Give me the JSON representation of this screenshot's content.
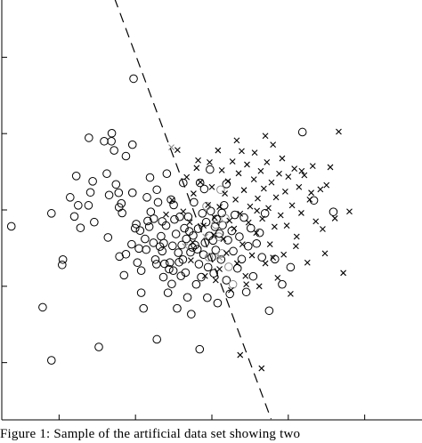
{
  "caption": "Figure 1: Sample of the artificial data set showing two",
  "chart_data": {
    "type": "scatter",
    "title": "",
    "xlabel": "",
    "ylabel": "",
    "xlim": [
      -4.5,
      6.5
    ],
    "ylim": [
      -4.5,
      6.5
    ],
    "grid": false,
    "ticks": {
      "x": [
        -3,
        -1,
        1,
        3,
        5
      ],
      "y": [
        -3,
        -1,
        1,
        3,
        5
      ]
    },
    "tick_labels_visible": false,
    "series": [
      {
        "marker": "circle",
        "color": "#000000",
        "points": [
          [
            -4.25,
            0.57
          ],
          [
            -3.43,
            -1.55
          ],
          [
            -3.2,
            -2.94
          ],
          [
            -3.2,
            0.91
          ],
          [
            -2.9,
            -0.3
          ],
          [
            -2.92,
            -0.44
          ],
          [
            -2.71,
            1.33
          ],
          [
            -2.6,
            0.83
          ],
          [
            -2.55,
            1.89
          ],
          [
            -2.5,
            1.12
          ],
          [
            -2.44,
            0.53
          ],
          [
            -2.23,
            1.12
          ],
          [
            -2.22,
            2.89
          ],
          [
            -2.18,
            1.46
          ],
          [
            -2.12,
            1.75
          ],
          [
            -2.08,
            0.68
          ],
          [
            -1.96,
            -2.59
          ],
          [
            -1.75,
            1.95
          ],
          [
            -1.82,
            2.8
          ],
          [
            -1.63,
            2.8
          ],
          [
            -1.69,
            1.39
          ],
          [
            -1.72,
            0.28
          ],
          [
            -1.62,
            3.01
          ],
          [
            -1.56,
            2.56
          ],
          [
            -1.51,
            1.67
          ],
          [
            -1.44,
            1.45
          ],
          [
            -1.42,
            -0.22
          ],
          [
            -1.43,
            1.07
          ],
          [
            -1.37,
            1.17
          ],
          [
            -1.35,
            0.92
          ],
          [
            -1.3,
            -0.71
          ],
          [
            -1.25,
            -0.16
          ],
          [
            -1.25,
            2.41
          ],
          [
            -1.08,
            1.45
          ],
          [
            -1.08,
            2.71
          ],
          [
            -1.05,
            4.44
          ],
          [
            -1.01,
            0.52
          ],
          [
            -0.98,
            0.63
          ],
          [
            -0.95,
            -0.38
          ],
          [
            -0.91,
            -0.01
          ],
          [
            -0.88,
            0.46
          ],
          [
            -0.85,
            -0.59
          ],
          [
            -0.85,
            -1.17
          ],
          [
            -0.79,
            -1.58
          ],
          [
            -0.75,
            0.24
          ],
          [
            -0.72,
            -0.04
          ],
          [
            -0.68,
            0.71
          ],
          [
            -0.64,
            0.56
          ],
          [
            -0.62,
            1.85
          ],
          [
            -0.6,
            0.95
          ],
          [
            -0.53,
            0.14
          ],
          [
            -0.52,
            0.77
          ],
          [
            -0.48,
            -0.3
          ],
          [
            -0.45,
            -0.42
          ],
          [
            -0.44,
            1.53
          ],
          [
            -0.44,
            -2.39
          ],
          [
            -0.41,
            1.2
          ],
          [
            -0.36,
            0.04
          ],
          [
            -0.33,
            0.31
          ],
          [
            -0.3,
            -0.08
          ],
          [
            -0.27,
            -0.76
          ],
          [
            -0.26,
            0.13
          ],
          [
            -0.24,
            -0.41
          ],
          [
            -0.2,
            0.59
          ],
          [
            -0.18,
            1.95
          ],
          [
            -0.15,
            -1.17
          ],
          [
            -0.12,
            -0.55
          ],
          [
            -0.1,
            -0.38
          ],
          [
            -0.07,
            1.27
          ],
          [
            -0.05,
            -0.94
          ],
          [
            -0.03,
            0.06
          ],
          [
            -0.01,
            -0.59
          ],
          [
            0.02,
            0.75
          ],
          [
            0.06,
            0.37
          ],
          [
            0.09,
            -1.58
          ],
          [
            0.12,
            -0.12
          ],
          [
            0.14,
            -0.37
          ],
          [
            0.16,
            0.82
          ],
          [
            0.19,
            -0.73
          ],
          [
            0.21,
            0.08
          ],
          [
            0.24,
            -0.3
          ],
          [
            0.25,
            1.71
          ],
          [
            0.28,
            0.52
          ],
          [
            0.31,
            -0.64
          ],
          [
            0.33,
            0.24
          ],
          [
            0.36,
            -1.29
          ],
          [
            0.38,
            0.82
          ],
          [
            0.41,
            0.44
          ],
          [
            0.44,
            -0.11
          ],
          [
            0.46,
            -1.73
          ],
          [
            0.49,
            0.02
          ],
          [
            0.51,
            0.33
          ],
          [
            0.53,
            1.2
          ],
          [
            0.56,
            0.08
          ],
          [
            0.59,
            -0.95
          ],
          [
            0.62,
            -0.03
          ],
          [
            0.64,
            0.51
          ],
          [
            0.66,
            -0.42
          ],
          [
            0.68,
            -2.65
          ],
          [
            0.69,
            1.71
          ],
          [
            0.72,
            -0.76
          ],
          [
            0.75,
            0.91
          ],
          [
            0.78,
            -0.17
          ],
          [
            0.8,
            1.55
          ],
          [
            0.82,
            0.14
          ],
          [
            0.85,
            0.68
          ],
          [
            0.88,
            -1.3
          ],
          [
            0.9,
            -0.5
          ],
          [
            0.93,
            0.32
          ],
          [
            0.95,
            2.06
          ],
          [
            0.97,
            0.97
          ],
          [
            1.0,
            -0.24
          ],
          [
            1.03,
            0.2
          ],
          [
            1.05,
            -0.66
          ],
          [
            1.08,
            0.56
          ],
          [
            1.1,
            -0.05
          ],
          [
            1.12,
            0.76
          ],
          [
            1.15,
            -1.44
          ],
          [
            1.2,
            0.38
          ],
          [
            1.24,
            -0.3
          ],
          [
            1.28,
            0.6
          ],
          [
            1.32,
            1.12
          ],
          [
            1.38,
            -0.84
          ],
          [
            1.42,
            0.21
          ],
          [
            1.47,
            -1.2
          ],
          [
            1.52,
            0.45
          ],
          [
            1.56,
            -0.08
          ],
          [
            1.6,
            0.87
          ],
          [
            1.67,
            -0.53
          ],
          [
            1.72,
            0.3
          ],
          [
            1.78,
            -0.29
          ],
          [
            1.84,
            0.8
          ],
          [
            1.9,
            -1.15
          ],
          [
            1.95,
            0.05
          ],
          [
            2.02,
            0.52
          ],
          [
            2.08,
            -0.74
          ],
          [
            2.17,
            0.12
          ],
          [
            2.25,
            0.4
          ],
          [
            2.31,
            -0.24
          ],
          [
            2.39,
            0.91
          ],
          [
            2.5,
            -1.64
          ],
          [
            2.65,
            -0.29
          ],
          [
            2.84,
            -0.95
          ],
          [
            3.06,
            -0.5
          ],
          [
            3.37,
            3.04
          ],
          [
            3.67,
            1.25
          ],
          [
            4.18,
            0.95
          ],
          [
            -1.1,
            0.1
          ],
          [
            -0.7,
            1.33
          ],
          [
            0.0,
            1.13
          ],
          [
            -0.3,
            0.7
          ],
          [
            1.38,
            1.68
          ],
          [
            1.26,
            0.92
          ]
        ]
      },
      {
        "marker": "circle",
        "color": "#8a8a8a",
        "points": [
          [
            0.86,
            1.1
          ],
          [
            1.1,
            0.62
          ],
          [
            1.18,
            0.3
          ],
          [
            1.26,
            -0.14
          ],
          [
            1.35,
            0.78
          ],
          [
            1.44,
            -0.49
          ],
          [
            1.55,
            -0.95
          ],
          [
            0.92,
            -0.24
          ],
          [
            1.23,
            1.53
          ]
        ]
      },
      {
        "marker": "cross",
        "color": "#000000",
        "points": [
          [
            -0.2,
            0.88
          ],
          [
            -0.04,
            1.26
          ],
          [
            0.1,
            2.57
          ],
          [
            0.25,
            0.96
          ],
          [
            0.34,
            1.86
          ],
          [
            0.42,
            0.68
          ],
          [
            0.45,
            -0.32
          ],
          [
            0.52,
            1.43
          ],
          [
            0.6,
            2.1
          ],
          [
            0.7,
            1.73
          ],
          [
            0.78,
            0.59
          ],
          [
            0.82,
            -0.73
          ],
          [
            0.9,
            1.13
          ],
          [
            0.94,
            2.25
          ],
          [
            1.0,
            1.6
          ],
          [
            1.05,
            0.35
          ],
          [
            1.1,
            -0.84
          ],
          [
            1.16,
            2.56
          ],
          [
            1.2,
            1.08
          ],
          [
            1.26,
            2.04
          ],
          [
            1.3,
            0.24
          ],
          [
            1.34,
            1.43
          ],
          [
            1.38,
            -0.13
          ],
          [
            1.42,
            1.75
          ],
          [
            1.46,
            0.72
          ],
          [
            1.5,
            -1.1
          ],
          [
            1.54,
            2.27
          ],
          [
            1.58,
            0.51
          ],
          [
            1.62,
            1.27
          ],
          [
            1.66,
            -0.4
          ],
          [
            1.7,
            1.96
          ],
          [
            1.74,
            0.9
          ],
          [
            1.78,
            2.54
          ],
          [
            1.8,
            0.1
          ],
          [
            1.84,
            1.52
          ],
          [
            1.88,
            -0.73
          ],
          [
            1.92,
            2.19
          ],
          [
            1.96,
            0.67
          ],
          [
            2.0,
            1.09
          ],
          [
            2.05,
            -0.19
          ],
          [
            2.1,
            1.8
          ],
          [
            2.12,
            2.5
          ],
          [
            2.16,
            0.4
          ],
          [
            2.2,
            1.3
          ],
          [
            2.24,
            -1.0
          ],
          [
            2.28,
            2.02
          ],
          [
            2.32,
            0.77
          ],
          [
            2.36,
            1.56
          ],
          [
            2.4,
            -0.4
          ],
          [
            2.44,
            2.25
          ],
          [
            2.48,
            1.05
          ],
          [
            2.52,
            0.1
          ],
          [
            2.56,
            1.72
          ],
          [
            2.6,
            2.71
          ],
          [
            2.64,
            0.56
          ],
          [
            2.68,
            1.33
          ],
          [
            2.72,
            -0.78
          ],
          [
            2.76,
            1.95
          ],
          [
            2.8,
            0.86
          ],
          [
            2.84,
            2.35
          ],
          [
            2.88,
            -0.17
          ],
          [
            2.92,
            1.48
          ],
          [
            2.96,
            0.59
          ],
          [
            3.0,
            1.87
          ],
          [
            3.06,
            -1.2
          ],
          [
            3.1,
            1.12
          ],
          [
            3.16,
            2.08
          ],
          [
            3.22,
            0.3
          ],
          [
            3.28,
            1.6
          ],
          [
            3.34,
            0.92
          ],
          [
            3.42,
            1.91
          ],
          [
            3.5,
            -0.38
          ],
          [
            3.56,
            1.27
          ],
          [
            3.64,
            2.15
          ],
          [
            3.72,
            0.7
          ],
          [
            3.84,
            1.54
          ],
          [
            3.96,
            -0.14
          ],
          [
            4.1,
            2.12
          ],
          [
            4.22,
            0.78
          ],
          [
            4.32,
            3.05
          ],
          [
            4.44,
            -0.65
          ],
          [
            4.6,
            0.96
          ],
          [
            2.3,
            -3.15
          ],
          [
            1.74,
            -2.8
          ],
          [
            0.5,
            0.15
          ],
          [
            1.2,
            -0.55
          ],
          [
            1.9,
            -0.95
          ],
          [
            2.6,
            -0.25
          ],
          [
            3.2,
            0.05
          ],
          [
            3.9,
            0.5
          ],
          [
            4.0,
            1.65
          ],
          [
            3.35,
            2.02
          ],
          [
            3.6,
            1.45
          ],
          [
            2.4,
            2.94
          ],
          [
            1.65,
            2.82
          ],
          [
            0.64,
            2.3
          ],
          [
            1.07,
            0.8
          ],
          [
            2.18,
            0.98
          ]
        ]
      },
      {
        "marker": "cross",
        "color": "#8a8a8a",
        "points": [
          [
            -0.06,
            2.64
          ],
          [
            0.3,
            0.05
          ],
          [
            0.83,
            0.3
          ],
          [
            1.2,
            -0.25
          ]
        ]
      }
    ],
    "line": {
      "style": "dashed",
      "color": "#000000",
      "points": [
        [
          -1.55,
          6.55
        ],
        [
          2.55,
          -4.48
        ]
      ]
    }
  }
}
